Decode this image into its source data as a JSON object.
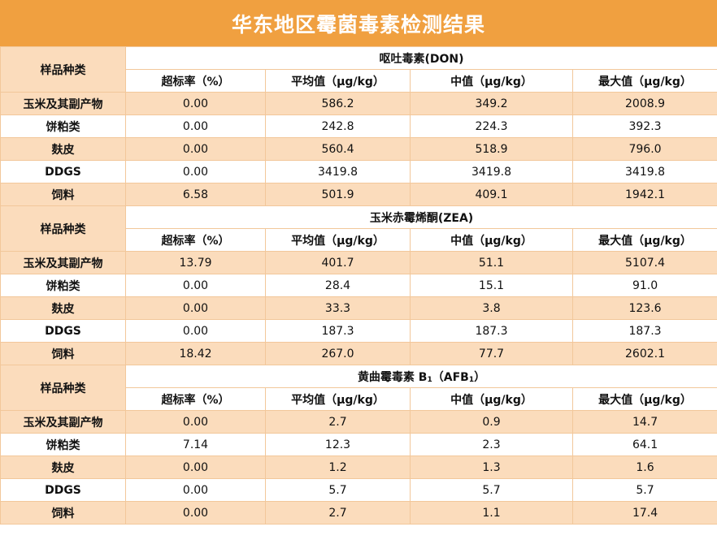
{
  "title": "华东地区霉菌毒素检测结果",
  "sample_header": "样品种类",
  "column_headers": [
    "超标率（%）",
    "平均值（μg/kg）",
    "中值（μg/kg）",
    "最大值（μg/kg）"
  ],
  "sections": [
    {
      "toxin": "呕吐毒素(DON)",
      "rows": [
        {
          "label": "玉米及其副产物",
          "values": [
            "0.00",
            "586.2",
            "349.2",
            "2008.9"
          ]
        },
        {
          "label": "饼粕类",
          "values": [
            "0.00",
            "242.8",
            "224.3",
            "392.3"
          ]
        },
        {
          "label": "麸皮",
          "values": [
            "0.00",
            "560.4",
            "518.9",
            "796.0"
          ]
        },
        {
          "label": "DDGS",
          "values": [
            "0.00",
            "3419.8",
            "3419.8",
            "3419.8"
          ]
        },
        {
          "label": "饲料",
          "values": [
            "6.58",
            "501.9",
            "409.1",
            "1942.1"
          ]
        }
      ]
    },
    {
      "toxin": "玉米赤霉烯酮(ZEA)",
      "rows": [
        {
          "label": "玉米及其副产物",
          "values": [
            "13.79",
            "401.7",
            "51.1",
            "5107.4"
          ]
        },
        {
          "label": "饼粕类",
          "values": [
            "0.00",
            "28.4",
            "15.1",
            "91.0"
          ]
        },
        {
          "label": "麸皮",
          "values": [
            "0.00",
            "33.3",
            "3.8",
            "123.6"
          ]
        },
        {
          "label": "DDGS",
          "values": [
            "0.00",
            "187.3",
            "187.3",
            "187.3"
          ]
        },
        {
          "label": "饲料",
          "values": [
            "18.42",
            "267.0",
            "77.7",
            "2602.1"
          ]
        }
      ]
    },
    {
      "toxin_parts": [
        "黄曲霉毒素 B",
        "1",
        "（AFB",
        "1",
        "）"
      ],
      "rows": [
        {
          "label": "玉米及其副产物",
          "values": [
            "0.00",
            "2.7",
            "0.9",
            "14.7"
          ]
        },
        {
          "label": "饼粕类",
          "values": [
            "7.14",
            "12.3",
            "2.3",
            "64.1"
          ]
        },
        {
          "label": "麸皮",
          "values": [
            "0.00",
            "1.2",
            "1.3",
            "1.6"
          ]
        },
        {
          "label": "DDGS",
          "values": [
            "0.00",
            "5.7",
            "5.7",
            "5.7"
          ]
        },
        {
          "label": "饲料",
          "values": [
            "0.00",
            "2.7",
            "1.1",
            "17.4"
          ]
        }
      ]
    }
  ],
  "colors": {
    "title_bg": "#f0a040",
    "band": "#fbdcbc",
    "border": "#f2c79a"
  }
}
